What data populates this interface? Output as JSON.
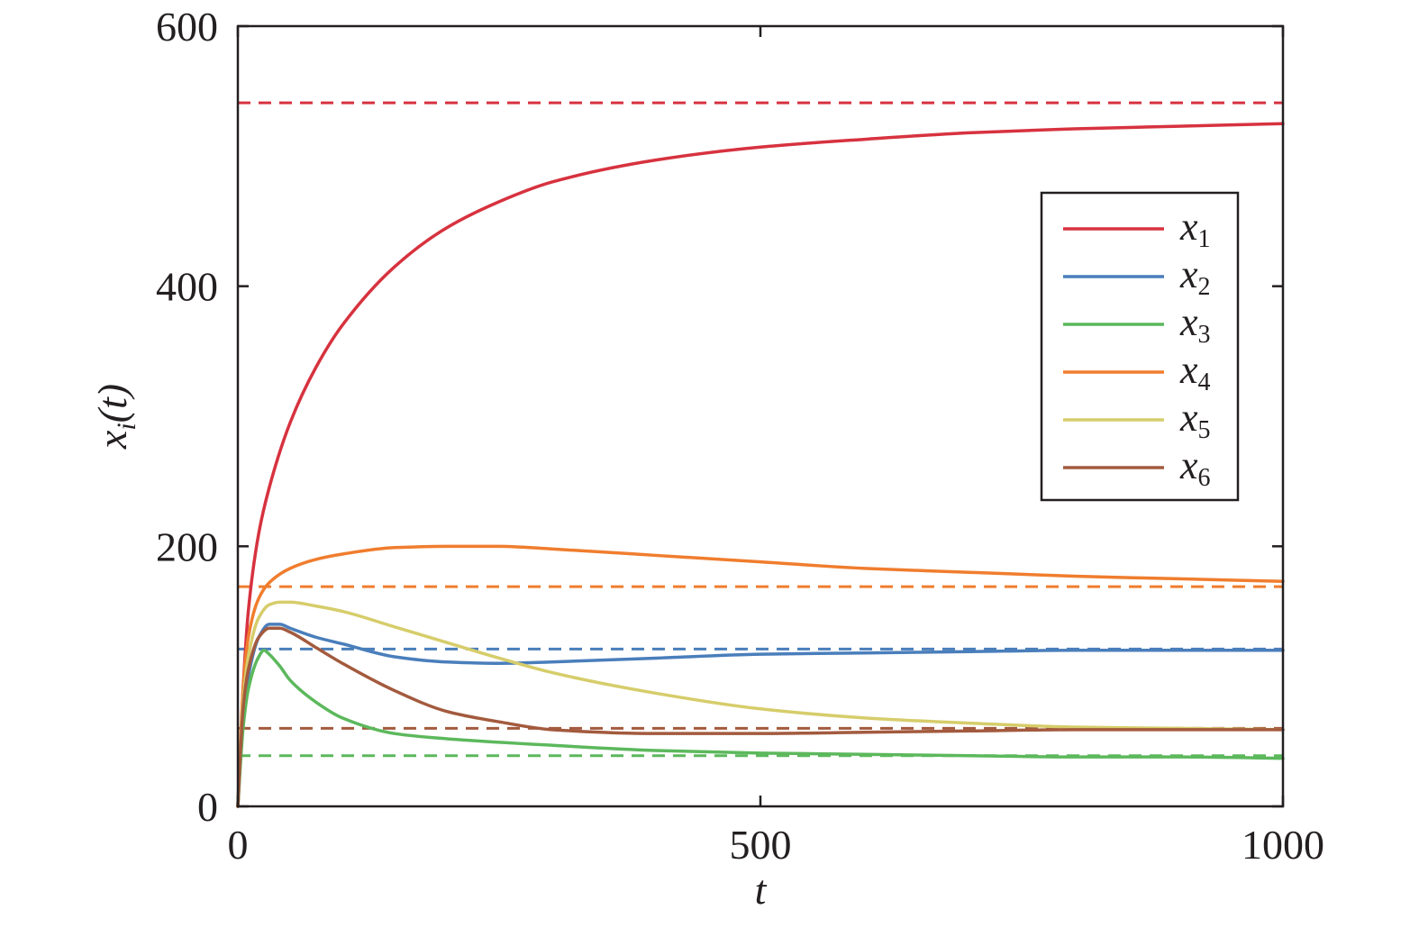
{
  "chart_data": {
    "type": "line",
    "title": "",
    "xlabel": "t",
    "ylabel": {
      "base": "x",
      "subscript": "i",
      "suffix": "(t)"
    },
    "xlim": [
      0,
      1000
    ],
    "ylim": [
      0,
      600
    ],
    "xticks": [
      0,
      500,
      1000
    ],
    "yticks": [
      0,
      200,
      400,
      600
    ],
    "xtick_labels": [
      "0",
      "500",
      "1000"
    ],
    "ytick_labels": [
      "0",
      "200",
      "400",
      "600"
    ],
    "grid": false,
    "legend": {
      "placement": "top-right"
    },
    "series": [
      {
        "name": "x1",
        "label_base": "x",
        "label_sub": "1",
        "color": "#d7323f",
        "x": [
          0,
          5,
          10,
          20,
          30,
          50,
          75,
          100,
          150,
          200,
          250,
          300,
          400,
          500,
          600,
          700,
          800,
          900,
          1000
        ],
        "y": [
          0,
          90,
          150,
          210,
          245,
          295,
          338,
          370,
          415,
          445,
          465,
          480,
          497,
          507,
          513,
          518,
          521,
          523,
          525
        ]
      },
      {
        "name": "x2",
        "label_base": "x",
        "label_sub": "2",
        "color": "#4a7ebb",
        "x": [
          0,
          5,
          10,
          20,
          30,
          40,
          50,
          75,
          100,
          150,
          200,
          250,
          300,
          400,
          500,
          600,
          700,
          800,
          900,
          1000
        ],
        "y": [
          0,
          70,
          100,
          130,
          140,
          140,
          137,
          130,
          125,
          115,
          111,
          110,
          111,
          114,
          117,
          118,
          119,
          120,
          120,
          120
        ]
      },
      {
        "name": "x3",
        "label_base": "x",
        "label_sub": "3",
        "color": "#5cb85c",
        "x": [
          0,
          5,
          10,
          20,
          25,
          30,
          40,
          50,
          75,
          100,
          150,
          200,
          300,
          400,
          500,
          600,
          700,
          800,
          900,
          1000
        ],
        "y": [
          0,
          60,
          90,
          115,
          120,
          117,
          108,
          97,
          80,
          68,
          56,
          52,
          47,
          43,
          41,
          40,
          39,
          38,
          38,
          37
        ]
      },
      {
        "name": "x4",
        "label_base": "x",
        "label_sub": "4",
        "color": "#f07d2e",
        "x": [
          0,
          5,
          10,
          20,
          30,
          50,
          75,
          100,
          150,
          200,
          250,
          300,
          400,
          500,
          600,
          700,
          800,
          900,
          1000
        ],
        "y": [
          0,
          90,
          130,
          160,
          172,
          183,
          190,
          194,
          199,
          200,
          200,
          198,
          193,
          188,
          183,
          180,
          177,
          175,
          173
        ]
      },
      {
        "name": "x5",
        "label_base": "x",
        "label_sub": "5",
        "color": "#d6cd6b",
        "x": [
          0,
          5,
          10,
          20,
          30,
          40,
          50,
          75,
          100,
          150,
          200,
          250,
          300,
          400,
          500,
          600,
          700,
          800,
          900,
          1000
        ],
        "y": [
          0,
          80,
          115,
          145,
          155,
          157,
          157,
          154,
          150,
          138,
          126,
          114,
          103,
          87,
          75,
          68,
          64,
          61,
          60,
          59
        ]
      },
      {
        "name": "x6",
        "label_base": "x",
        "label_sub": "6",
        "color": "#a35a3e",
        "x": [
          0,
          5,
          10,
          20,
          30,
          40,
          50,
          75,
          100,
          150,
          200,
          250,
          300,
          400,
          500,
          600,
          700,
          800,
          900,
          1000
        ],
        "y": [
          0,
          75,
          105,
          130,
          137,
          137,
          134,
          122,
          110,
          89,
          73,
          65,
          59,
          56,
          56,
          57,
          58,
          59,
          59,
          59
        ]
      }
    ],
    "reference_lines": [
      {
        "series": "x1",
        "y": 541,
        "color": "#d7323f",
        "style": "dashed"
      },
      {
        "series": "x4",
        "y": 169,
        "color": "#f07d2e",
        "style": "dashed"
      },
      {
        "series": "x2",
        "y": 121,
        "color": "#4a7ebb",
        "style": "dashed"
      },
      {
        "series": "x6",
        "y": 60,
        "color": "#a35a3e",
        "style": "dashed"
      },
      {
        "series": "x3",
        "y": 39,
        "color": "#5cb85c",
        "style": "dashed"
      }
    ]
  }
}
